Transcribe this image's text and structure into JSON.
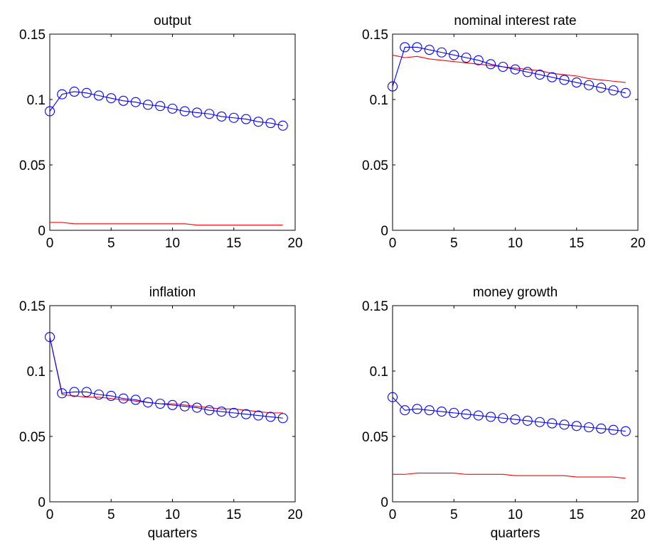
{
  "chart_data": [
    {
      "type": "line",
      "title": "output",
      "xlabel": "",
      "ylabel": "",
      "xlim": [
        0,
        20
      ],
      "ylim": [
        0,
        0.15
      ],
      "xticks": [
        "0",
        "5",
        "10",
        "15",
        "20"
      ],
      "yticks": [
        "0",
        "0.05",
        "0.1",
        "0.15"
      ],
      "grid": false,
      "series": [
        {
          "color": "#0000ff",
          "marker": "circle",
          "x": [
            0,
            1,
            2,
            3,
            4,
            5,
            6,
            7,
            8,
            9,
            10,
            11,
            12,
            13,
            14,
            15,
            16,
            17,
            18,
            19
          ],
          "y": [
            0.091,
            0.104,
            0.106,
            0.105,
            0.103,
            0.101,
            0.099,
            0.098,
            0.096,
            0.095,
            0.093,
            0.091,
            0.09,
            0.089,
            0.087,
            0.086,
            0.085,
            0.083,
            0.082,
            0.08
          ]
        },
        {
          "color": "#ff0000",
          "marker": "none",
          "x": [
            0,
            1,
            2,
            3,
            4,
            5,
            6,
            7,
            8,
            9,
            10,
            11,
            12,
            13,
            14,
            15,
            16,
            17,
            18,
            19
          ],
          "y": [
            0.006,
            0.006,
            0.005,
            0.005,
            0.005,
            0.005,
            0.005,
            0.005,
            0.005,
            0.005,
            0.005,
            0.005,
            0.004,
            0.004,
            0.004,
            0.004,
            0.004,
            0.004,
            0.004,
            0.004
          ]
        }
      ]
    },
    {
      "type": "line",
      "title": "nominal interest rate",
      "xlabel": "",
      "ylabel": "",
      "xlim": [
        0,
        20
      ],
      "ylim": [
        0,
        0.15
      ],
      "xticks": [
        "0",
        "5",
        "10",
        "15",
        "20"
      ],
      "yticks": [
        "0",
        "0.05",
        "0.1",
        "0.15"
      ],
      "grid": false,
      "series": [
        {
          "color": "#0000ff",
          "marker": "circle",
          "x": [
            0,
            1,
            2,
            3,
            4,
            5,
            6,
            7,
            8,
            9,
            10,
            11,
            12,
            13,
            14,
            15,
            16,
            17,
            18,
            19
          ],
          "y": [
            0.11,
            0.14,
            0.14,
            0.138,
            0.136,
            0.134,
            0.132,
            0.13,
            0.127,
            0.125,
            0.123,
            0.121,
            0.119,
            0.117,
            0.115,
            0.113,
            0.111,
            0.109,
            0.107,
            0.105
          ]
        },
        {
          "color": "#ff0000",
          "marker": "none",
          "x": [
            0,
            1,
            2,
            3,
            4,
            5,
            6,
            7,
            8,
            9,
            10,
            11,
            12,
            13,
            14,
            15,
            16,
            17,
            18,
            19
          ],
          "y": [
            0.134,
            0.132,
            0.133,
            0.131,
            0.13,
            0.129,
            0.128,
            0.127,
            0.126,
            0.125,
            0.124,
            0.123,
            0.122,
            0.12,
            0.119,
            0.118,
            0.116,
            0.115,
            0.114,
            0.113
          ]
        }
      ]
    },
    {
      "type": "line",
      "title": "inflation",
      "xlabel": "quarters",
      "ylabel": "",
      "xlim": [
        0,
        20
      ],
      "ylim": [
        0,
        0.15
      ],
      "xticks": [
        "0",
        "5",
        "10",
        "15",
        "20"
      ],
      "yticks": [
        "0",
        "0.05",
        "0.1",
        "0.15"
      ],
      "grid": false,
      "series": [
        {
          "color": "#0000ff",
          "marker": "circle",
          "x": [
            0,
            1,
            2,
            3,
            4,
            5,
            6,
            7,
            8,
            9,
            10,
            11,
            12,
            13,
            14,
            15,
            16,
            17,
            18,
            19
          ],
          "y": [
            0.126,
            0.083,
            0.084,
            0.084,
            0.082,
            0.081,
            0.079,
            0.078,
            0.076,
            0.075,
            0.074,
            0.073,
            0.072,
            0.07,
            0.069,
            0.068,
            0.067,
            0.066,
            0.065,
            0.064
          ]
        },
        {
          "color": "#ff0000",
          "marker": "none",
          "x": [
            0,
            1,
            2,
            3,
            4,
            5,
            6,
            7,
            8,
            9,
            10,
            11,
            12,
            13,
            14,
            15,
            16,
            17,
            18,
            19
          ],
          "y": [
            0.126,
            0.082,
            0.081,
            0.08,
            0.08,
            0.079,
            0.078,
            0.077,
            0.076,
            0.075,
            0.075,
            0.074,
            0.073,
            0.072,
            0.071,
            0.071,
            0.07,
            0.069,
            0.068,
            0.068
          ]
        }
      ]
    },
    {
      "type": "line",
      "title": "money growth",
      "xlabel": "quarters",
      "ylabel": "",
      "xlim": [
        0,
        20
      ],
      "ylim": [
        0,
        0.15
      ],
      "xticks": [
        "0",
        "5",
        "10",
        "15",
        "20"
      ],
      "yticks": [
        "0",
        "0.05",
        "0.1",
        "0.15"
      ],
      "grid": false,
      "series": [
        {
          "color": "#0000ff",
          "marker": "circle",
          "x": [
            0,
            1,
            2,
            3,
            4,
            5,
            6,
            7,
            8,
            9,
            10,
            11,
            12,
            13,
            14,
            15,
            16,
            17,
            18,
            19
          ],
          "y": [
            0.08,
            0.07,
            0.071,
            0.07,
            0.069,
            0.068,
            0.067,
            0.066,
            0.065,
            0.064,
            0.063,
            0.062,
            0.061,
            0.06,
            0.059,
            0.058,
            0.057,
            0.056,
            0.055,
            0.054
          ]
        },
        {
          "color": "#ff0000",
          "marker": "none",
          "x": [
            0,
            1,
            2,
            3,
            4,
            5,
            6,
            7,
            8,
            9,
            10,
            11,
            12,
            13,
            14,
            15,
            16,
            17,
            18,
            19
          ],
          "y": [
            0.021,
            0.021,
            0.022,
            0.022,
            0.022,
            0.022,
            0.021,
            0.021,
            0.021,
            0.021,
            0.02,
            0.02,
            0.02,
            0.02,
            0.02,
            0.019,
            0.019,
            0.019,
            0.019,
            0.018
          ]
        }
      ]
    }
  ]
}
